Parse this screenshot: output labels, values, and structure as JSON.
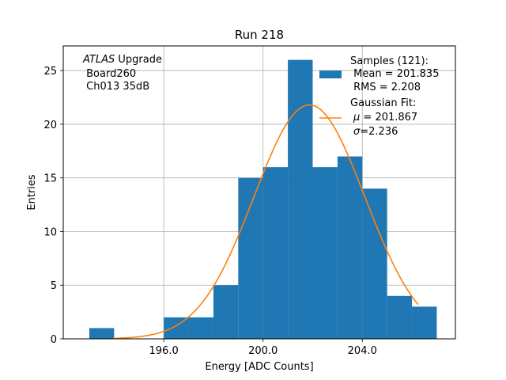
{
  "chart_data": {
    "type": "bar",
    "title": "Run 218",
    "xlabel": "Energy [ADC Counts]",
    "ylabel": "Entries",
    "xlim": [
      191.95,
      207.75
    ],
    "ylim": [
      0,
      27.3
    ],
    "x_ticks": [
      196.0,
      200.0,
      204.0
    ],
    "x_tick_labels": [
      "196.0",
      "200.0",
      "204.0"
    ],
    "y_ticks": [
      0,
      5,
      10,
      15,
      20,
      25
    ],
    "y_tick_labels": [
      "0",
      "5",
      "10",
      "15",
      "20",
      "25"
    ],
    "grid": true,
    "histogram": {
      "name": "Samples (121):",
      "color": "#1f77b4",
      "bin_edges": [
        193,
        194,
        195,
        196,
        197,
        198,
        199,
        200,
        201,
        202,
        203,
        204,
        205,
        206,
        207
      ],
      "counts": [
        1,
        0,
        0,
        2,
        2,
        5,
        15,
        16,
        26,
        16,
        17,
        14,
        4,
        3
      ]
    },
    "fit": {
      "name": "Gaussian Fit:",
      "color": "#ff7f0e",
      "mean": 201.867,
      "sigma": 2.236,
      "amplitude": 21.8,
      "x_range": [
        193.95,
        206.25
      ]
    },
    "annotation": {
      "italic": "ATLAS",
      "rest": " Upgrade",
      "line2": " Board260",
      "line3": " Ch013 35dB"
    },
    "legend": {
      "position": "top-right",
      "samples_title": "Samples (121):",
      "samples_mean": " Mean = 201.835",
      "samples_rms": " RMS = 2.208",
      "fit_title": "Gaussian Fit:",
      "fit_mu_symbol": "μ",
      "fit_mu_value": " = 201.867",
      "fit_sigma_symbol": "σ",
      "fit_sigma_value": "=2.236"
    }
  }
}
